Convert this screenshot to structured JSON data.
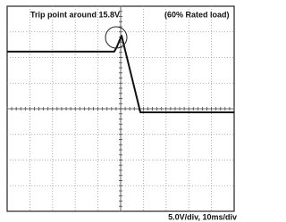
{
  "chart_data": {
    "type": "line",
    "title": "Trip point around 15.8V",
    "subtitle": "(60% Rated load)",
    "scale_label": "5.0V/div, 10ms/div",
    "x": [
      0,
      4.72,
      4.84,
      5.04,
      5.87,
      10
    ],
    "series": [
      {
        "color": "#111111",
        "values": [
          6.23,
          6.23,
          6.43,
          6.85,
          3.86,
          3.86
        ]
      }
    ],
    "xlim": [
      0,
      10
    ],
    "ylim": [
      0,
      8
    ],
    "grid": true
  }
}
